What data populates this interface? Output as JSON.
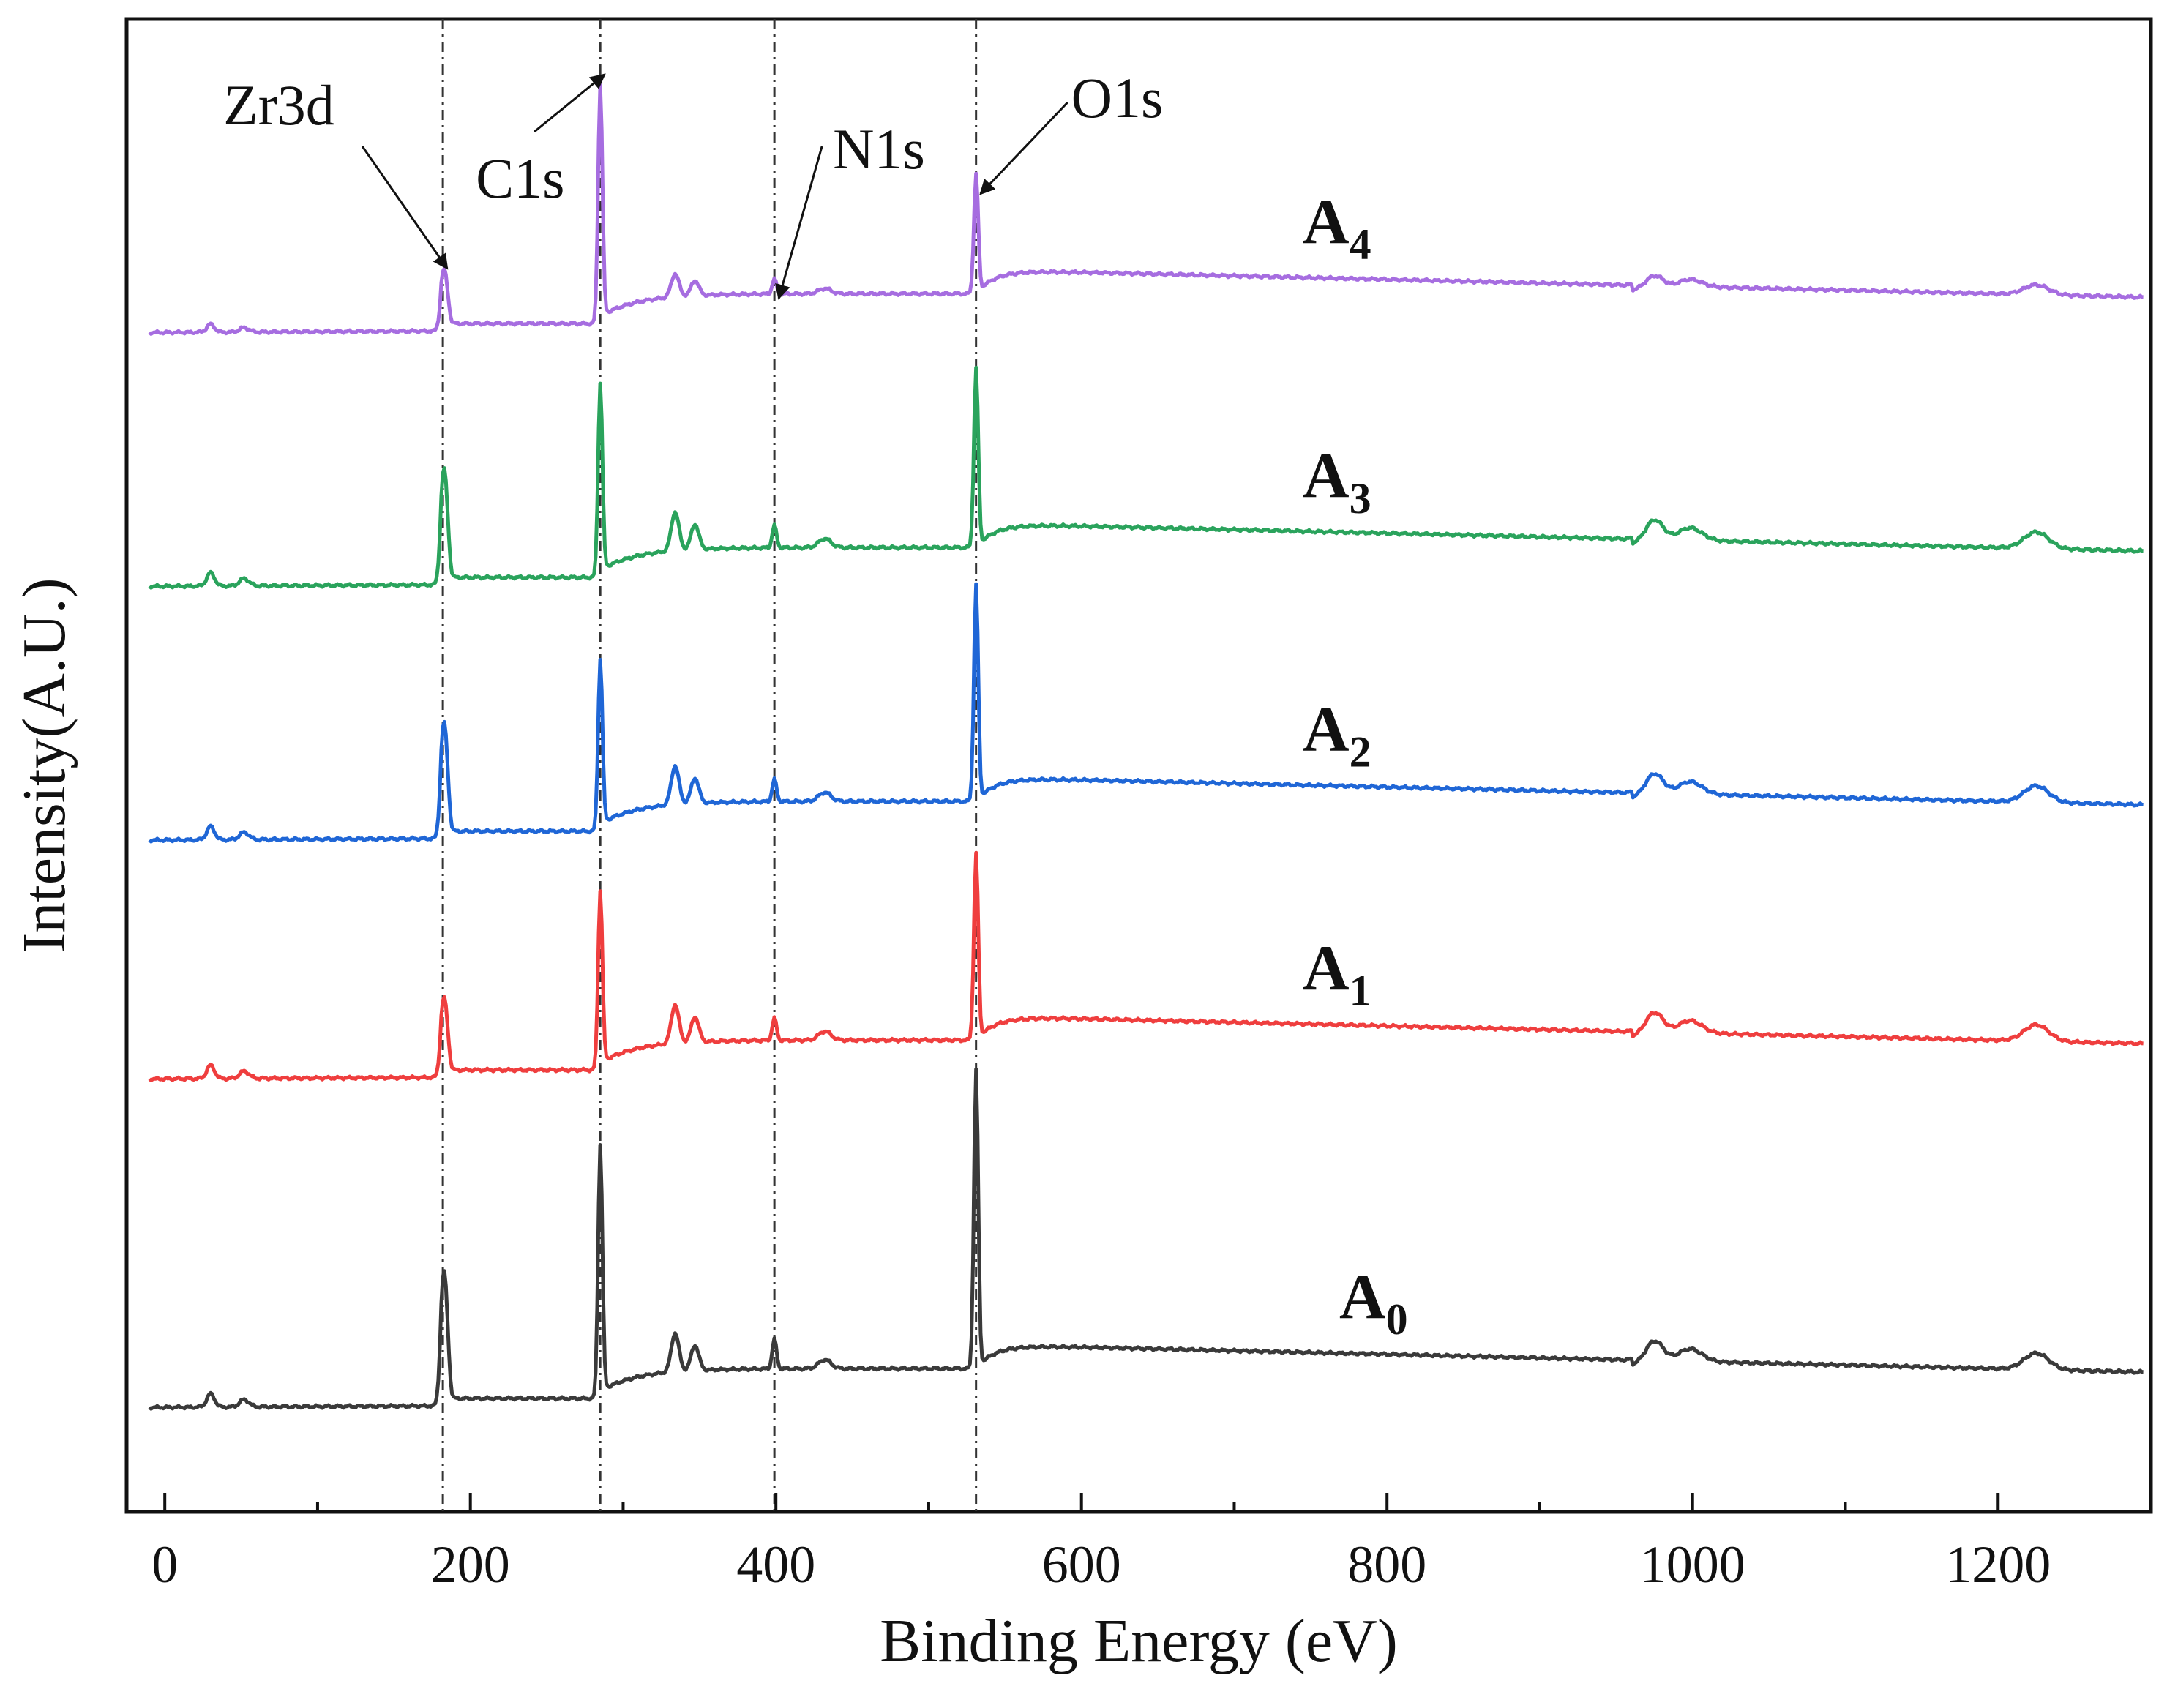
{
  "chart_data": {
    "type": "line",
    "title": "",
    "xlabel": "Binding Energy (eV)",
    "ylabel": "Intensity(A.U.)",
    "xlim": [
      -25,
      1300
    ],
    "ylim": [
      0,
      100
    ],
    "x_ticks": [
      0,
      200,
      400,
      600,
      800,
      1000,
      1200
    ],
    "x_tick_labels": [
      "0",
      "200",
      "400",
      "600",
      "800",
      "1000",
      "1200"
    ],
    "y_ticks_shown": false,
    "grid": false,
    "peak_markers": [
      {
        "name": "Zr3d",
        "energy": 182
      },
      {
        "name": "C1s",
        "energy": 285
      },
      {
        "name": "N1s",
        "energy": 399
      },
      {
        "name": "O1s",
        "energy": 531
      }
    ],
    "series": [
      {
        "name": "A0",
        "label_main": "A",
        "label_sub": "0",
        "color": "#3a3a3a",
        "offset": 7,
        "peak_heights": {
          "Zr3d": 7,
          "C1s": 17,
          "N1s": 2,
          "O1s": 20
        }
      },
      {
        "name": "A1",
        "label_main": "A",
        "label_sub": "1",
        "color": "#ef3e3e",
        "offset": 29,
        "peak_heights": {
          "Zr3d": 4,
          "C1s": 12,
          "N1s": 1.5,
          "O1s": 12.5
        }
      },
      {
        "name": "A2",
        "label_main": "A",
        "label_sub": "2",
        "color": "#1f66d6",
        "offset": 45,
        "peak_heights": {
          "Zr3d": 6,
          "C1s": 11.5,
          "N1s": 1.5,
          "O1s": 14.5
        }
      },
      {
        "name": "A3",
        "label_main": "A",
        "label_sub": "3",
        "color": "#2aa35c",
        "offset": 62,
        "peak_heights": {
          "Zr3d": 6,
          "C1s": 13,
          "N1s": 1.5,
          "O1s": 12
        }
      },
      {
        "name": "A4",
        "label_main": "A",
        "label_sub": "4",
        "color": "#a66de0",
        "offset": 79,
        "peak_heights": {
          "Zr3d": 3,
          "C1s": 16,
          "N1s": 1,
          "O1s": 8
        }
      }
    ]
  }
}
